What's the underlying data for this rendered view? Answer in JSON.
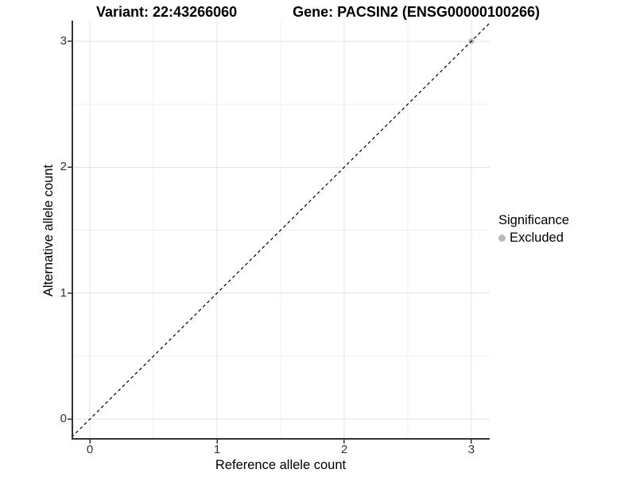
{
  "chart_data": {
    "type": "scatter",
    "title_parts": [
      "Variant: 22:43266060",
      "Gene: PACSIN2 (ENSG00000100266)"
    ],
    "xlabel": "Reference allele count",
    "ylabel": "Alternative allele count",
    "x_ticks": [
      0,
      1,
      2,
      3
    ],
    "y_ticks": [
      0,
      1,
      2,
      3
    ],
    "x_minor_ticks": [
      0.5,
      1.5,
      2.5
    ],
    "y_minor_ticks": [
      0.5,
      1.5,
      2.5
    ],
    "xlim": [
      -0.144,
      3.144
    ],
    "ylim": [
      -0.163,
      3.163
    ],
    "grid": "major and minor gridlines on white background",
    "points": [
      {
        "x": 3,
        "y": 3,
        "series": "Excluded"
      }
    ],
    "identity_line": {
      "slope": 1,
      "intercept": 0,
      "style": "dashed",
      "color": "#000000"
    },
    "legend": {
      "title": "Significance",
      "position": "right",
      "entries": [
        {
          "label": "Excluded",
          "color": "#b8b8b8"
        }
      ]
    },
    "colors": {
      "axis_line": "#333333",
      "tick_mark": "#333333",
      "tick_label": "#333333",
      "grid_major": "#e3e3e3",
      "grid_minor": "#f0f0f0",
      "background": "#ffffff"
    }
  }
}
